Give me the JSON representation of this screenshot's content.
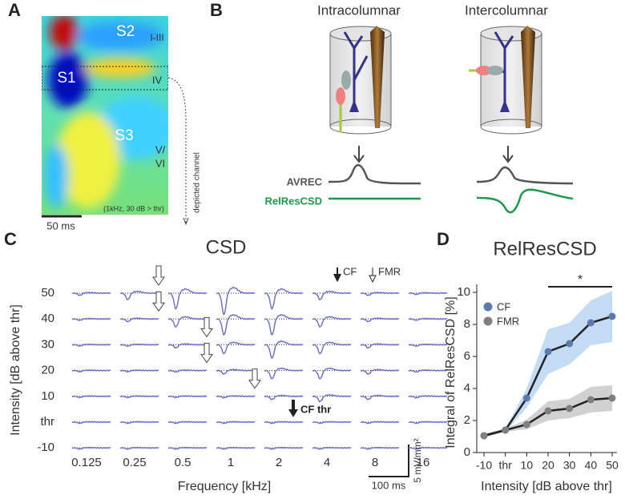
{
  "panel_a": {
    "label": "A",
    "layers": [
      "S2",
      "I-III",
      "S1",
      "IV",
      "S3",
      "V/",
      "VI"
    ],
    "stimulus": "(1kHz, 30 dB > thr)",
    "scale_bar": "50 ms",
    "channel_note": "depicted channel"
  },
  "panel_b": {
    "label": "B",
    "columns": [
      "Intracolumnar",
      "Intercolumnar"
    ],
    "traces": [
      "AVREC",
      "RelResCSD"
    ]
  },
  "panel_c": {
    "label": "C",
    "title": "CSD",
    "y_label": "Intensity [dB above thr]",
    "x_label": "Frequency [kHz]",
    "rows": [
      "50",
      "40",
      "30",
      "20",
      "10",
      "thr",
      "-10"
    ],
    "columns": [
      "0.125",
      "0.25",
      "0.5",
      "1",
      "2",
      "4",
      "8",
      "16"
    ],
    "legend": [
      "CF",
      "FMR"
    ],
    "annotation": "CF thr",
    "scale_y": "5 mV/mm²",
    "scale_x": "100 ms"
  },
  "chart_data": {
    "type": "line",
    "panel_label": "D",
    "title": "RelResCSD",
    "x_label": "Intensity [dB above thr]",
    "y_label": "Integral of RelResCSD [%]",
    "categories": [
      "-10",
      "thr",
      "10",
      "20",
      "30",
      "40",
      "50"
    ],
    "series": [
      {
        "name": "CF",
        "color": "#5b79ad",
        "band_color": "#a9cdee",
        "values": [
          1.05,
          1.4,
          3.4,
          6.3,
          6.8,
          8.1,
          8.5
        ],
        "errors": [
          0.1,
          0.1,
          0.6,
          1.4,
          1.3,
          1.4,
          1.6
        ]
      },
      {
        "name": "FMR",
        "color": "#7f7f7f",
        "band_color": "#bdbdbd",
        "values": [
          1.05,
          1.4,
          1.75,
          2.6,
          2.75,
          3.3,
          3.4
        ],
        "errors": [
          0.1,
          0.1,
          0.3,
          0.6,
          0.6,
          0.8,
          0.8
        ]
      }
    ],
    "line_color": "#222222",
    "significance": "*",
    "ylim": [
      0,
      10.5
    ],
    "yticks": [
      0,
      2,
      4,
      6,
      8,
      10
    ]
  }
}
